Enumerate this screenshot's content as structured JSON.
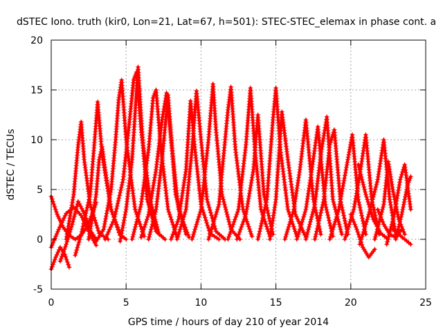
{
  "chart_data": {
    "type": "scatter",
    "title": "dSTEC Iono. truth (kir0, Lon=21, Lat=67, h=501): STEC-STEC_elemax in phase cont. a",
    "xlabel": "GPS time / hours of day 210 of year 2014",
    "ylabel": "dSTEC  / TECUs",
    "xlim": [
      0,
      25
    ],
    "ylim": [
      -5,
      20
    ],
    "xticks": [
      "0",
      "5",
      "10",
      "15",
      "20",
      "25"
    ],
    "yticks": [
      "-5",
      "0",
      "5",
      "10",
      "15",
      "20"
    ],
    "grid": true,
    "marker": "+",
    "color": "#ff0000",
    "series": [
      {
        "x": [
          0.0,
          0.3,
          0.6,
          0.9,
          1.2
        ],
        "y": [
          -3.0,
          -1.8,
          -0.8,
          -1.5,
          -2.8
        ]
      },
      {
        "x": [
          0.0,
          0.4,
          0.8,
          1.2,
          1.6,
          2.0,
          2.4,
          2.8,
          3.0
        ],
        "y": [
          4.3,
          2.5,
          1.2,
          0.4,
          0.0,
          0.4,
          1.3,
          2.8,
          3.7
        ]
      },
      {
        "x": [
          0.0,
          0.5,
          1.0,
          1.5,
          2.0,
          2.5,
          3.0
        ],
        "y": [
          -0.8,
          1.0,
          2.6,
          3.2,
          2.4,
          0.8,
          -0.6
        ]
      },
      {
        "x": [
          0.6,
          1.0,
          1.4,
          1.8,
          2.2,
          2.6,
          3.0
        ],
        "y": [
          -2.2,
          -0.5,
          1.5,
          3.8,
          2.6,
          0.9,
          0.0
        ]
      },
      {
        "x": [
          1.0,
          1.5,
          1.8,
          2.0,
          2.2,
          2.6,
          3.2,
          3.8
        ],
        "y": [
          0.0,
          4.5,
          9.5,
          11.8,
          8.0,
          3.5,
          0.6,
          0.0
        ]
      },
      {
        "x": [
          2.5,
          3.0,
          3.2,
          3.4,
          3.6,
          4.0,
          4.6,
          5.0
        ],
        "y": [
          0.0,
          4.5,
          8.0,
          9.3,
          7.0,
          3.0,
          0.5,
          0.0
        ]
      },
      {
        "x": [
          1.6,
          2.0,
          2.6,
          2.9,
          3.1,
          3.4,
          4.0,
          4.6
        ],
        "y": [
          -1.6,
          0.5,
          4.5,
          10.0,
          13.8,
          8.5,
          3.0,
          0.4
        ]
      },
      {
        "x": [
          3.0,
          3.5,
          4.0,
          4.3,
          4.5,
          4.7,
          5.0,
          5.6,
          6.2
        ],
        "y": [
          -0.2,
          1.0,
          5.0,
          10.0,
          14.0,
          16.0,
          10.0,
          3.0,
          0.3
        ]
      },
      {
        "x": [
          3.6,
          4.2,
          4.8,
          5.2,
          5.5,
          5.7,
          6.0,
          6.6,
          7.2
        ],
        "y": [
          0.0,
          2.0,
          6.0,
          11.5,
          16.0,
          16.8,
          11.0,
          4.0,
          0.5
        ]
      },
      {
        "x": [
          4.6,
          5.0,
          5.4,
          5.8,
          6.1,
          6.4,
          7.0,
          7.6
        ],
        "y": [
          -0.2,
          3.0,
          8.0,
          17.3,
          10.0,
          4.0,
          0.8,
          0.0
        ]
      },
      {
        "x": [
          5.4,
          6.0,
          6.5,
          6.8,
          7.0,
          7.3,
          7.8,
          8.4
        ],
        "y": [
          0.0,
          3.5,
          9.0,
          14.2,
          15.0,
          9.5,
          3.0,
          0.2
        ]
      },
      {
        "x": [
          6.0,
          6.5,
          7.0,
          7.4,
          7.7,
          8.0,
          8.5,
          9.2
        ],
        "y": [
          0.2,
          2.5,
          7.0,
          12.0,
          14.7,
          10.0,
          3.0,
          0.2
        ]
      },
      {
        "x": [
          6.5,
          7.0,
          7.4,
          7.8,
          8.3,
          9.0
        ],
        "y": [
          0.0,
          3.0,
          8.0,
          14.5,
          4.5,
          0.5
        ]
      },
      {
        "x": [
          8.0,
          8.5,
          9.0,
          9.3,
          9.6,
          10.0,
          10.6,
          11.2
        ],
        "y": [
          0.0,
          2.0,
          7.0,
          13.9,
          9.0,
          3.5,
          0.6,
          0.0
        ]
      },
      {
        "x": [
          8.4,
          9.0,
          9.4,
          9.7,
          10.0,
          10.4,
          11.0,
          11.6
        ],
        "y": [
          0.0,
          3.0,
          9.0,
          14.9,
          10.0,
          4.0,
          0.8,
          0.0
        ]
      },
      {
        "x": [
          9.4,
          10.0,
          10.5,
          10.8,
          11.0,
          11.4,
          12.0,
          12.6
        ],
        "y": [
          0.0,
          3.0,
          10.0,
          15.6,
          11.0,
          4.5,
          1.0,
          0.0
        ]
      },
      {
        "x": [
          10.5,
          11.2,
          11.8,
          12.0,
          12.3,
          12.8,
          13.4
        ],
        "y": [
          0.0,
          3.5,
          13.0,
          15.3,
          9.0,
          3.0,
          0.3
        ]
      },
      {
        "x": [
          11.8,
          12.5,
          13.0,
          13.3,
          13.6,
          14.0,
          14.6
        ],
        "y": [
          0.0,
          3.0,
          9.5,
          15.2,
          9.0,
          3.0,
          0.3
        ]
      },
      {
        "x": [
          12.4,
          13.0,
          13.5,
          13.8,
          14.2,
          14.8
        ],
        "y": [
          0.0,
          2.5,
          7.0,
          12.5,
          4.5,
          0.5
        ]
      },
      {
        "x": [
          13.8,
          14.4,
          14.8,
          15.0,
          15.3,
          15.8,
          16.4
        ],
        "y": [
          0.0,
          4.0,
          12.0,
          15.2,
          9.0,
          3.0,
          0.3
        ]
      },
      {
        "x": [
          14.6,
          15.0,
          15.4,
          15.8,
          16.3,
          17.0
        ],
        "y": [
          0.0,
          4.0,
          12.8,
          8.0,
          2.5,
          0.2
        ]
      },
      {
        "x": [
          15.6,
          16.2,
          16.6,
          17.0,
          17.5,
          18.0
        ],
        "y": [
          0.0,
          3.0,
          7.0,
          12.0,
          4.0,
          0.5
        ]
      },
      {
        "x": [
          16.4,
          17.0,
          17.4,
          17.8,
          18.3,
          18.8
        ],
        "y": [
          0.0,
          3.0,
          7.0,
          11.3,
          3.5,
          0.3
        ]
      },
      {
        "x": [
          17.0,
          17.6,
          18.0,
          18.4,
          18.8,
          19.4
        ],
        "y": [
          0.0,
          3.5,
          8.5,
          12.3,
          4.0,
          0.5
        ]
      },
      {
        "x": [
          17.6,
          18.2,
          18.6,
          18.9,
          19.3,
          19.8
        ],
        "y": [
          0.0,
          4.0,
          9.5,
          11.0,
          4.0,
          0.5
        ]
      },
      {
        "x": [
          18.6,
          19.2,
          19.8,
          20.1,
          20.5,
          21.0
        ],
        "y": [
          0.0,
          3.0,
          8.0,
          10.5,
          4.0,
          0.5
        ]
      },
      {
        "x": [
          19.6,
          20.2,
          20.6,
          21.0,
          21.4,
          21.9
        ],
        "y": [
          0.0,
          3.0,
          6.5,
          10.5,
          4.0,
          0.5
        ]
      },
      {
        "x": [
          20.6,
          21.2,
          21.8,
          22.2,
          22.6,
          23.0
        ],
        "y": [
          -0.5,
          2.5,
          6.0,
          10.0,
          4.0,
          0.5
        ]
      },
      {
        "x": [
          21.6,
          22.2,
          22.5,
          22.8,
          23.2,
          23.6
        ],
        "y": [
          0.0,
          3.5,
          7.8,
          5.0,
          2.0,
          0.5
        ]
      },
      {
        "x": [
          22.4,
          22.9,
          23.3,
          23.6,
          24.0
        ],
        "y": [
          -0.5,
          2.5,
          6.0,
          7.5,
          3.0
        ]
      },
      {
        "x": [
          23.0,
          23.4,
          23.8,
          24.0
        ],
        "y": [
          0.0,
          2.5,
          5.5,
          6.3
        ]
      },
      {
        "x": [
          22.8,
          23.2,
          23.6,
          24.0
        ],
        "y": [
          1.0,
          0.5,
          0.0,
          -0.5
        ]
      },
      {
        "x": [
          20.0,
          20.4,
          20.8,
          21.2,
          21.6
        ],
        "y": [
          2.5,
          1.0,
          -0.8,
          -1.8,
          -1.0
        ]
      },
      {
        "x": [
          21.8,
          22.2,
          22.6,
          23.0,
          23.4
        ],
        "y": [
          3.0,
          1.5,
          0.5,
          0.2,
          1.0
        ]
      },
      {
        "x": [
          20.5,
          21.0,
          21.5,
          22.0,
          22.5
        ],
        "y": [
          7.5,
          4.5,
          2.0,
          0.6,
          0.0
        ]
      }
    ]
  }
}
